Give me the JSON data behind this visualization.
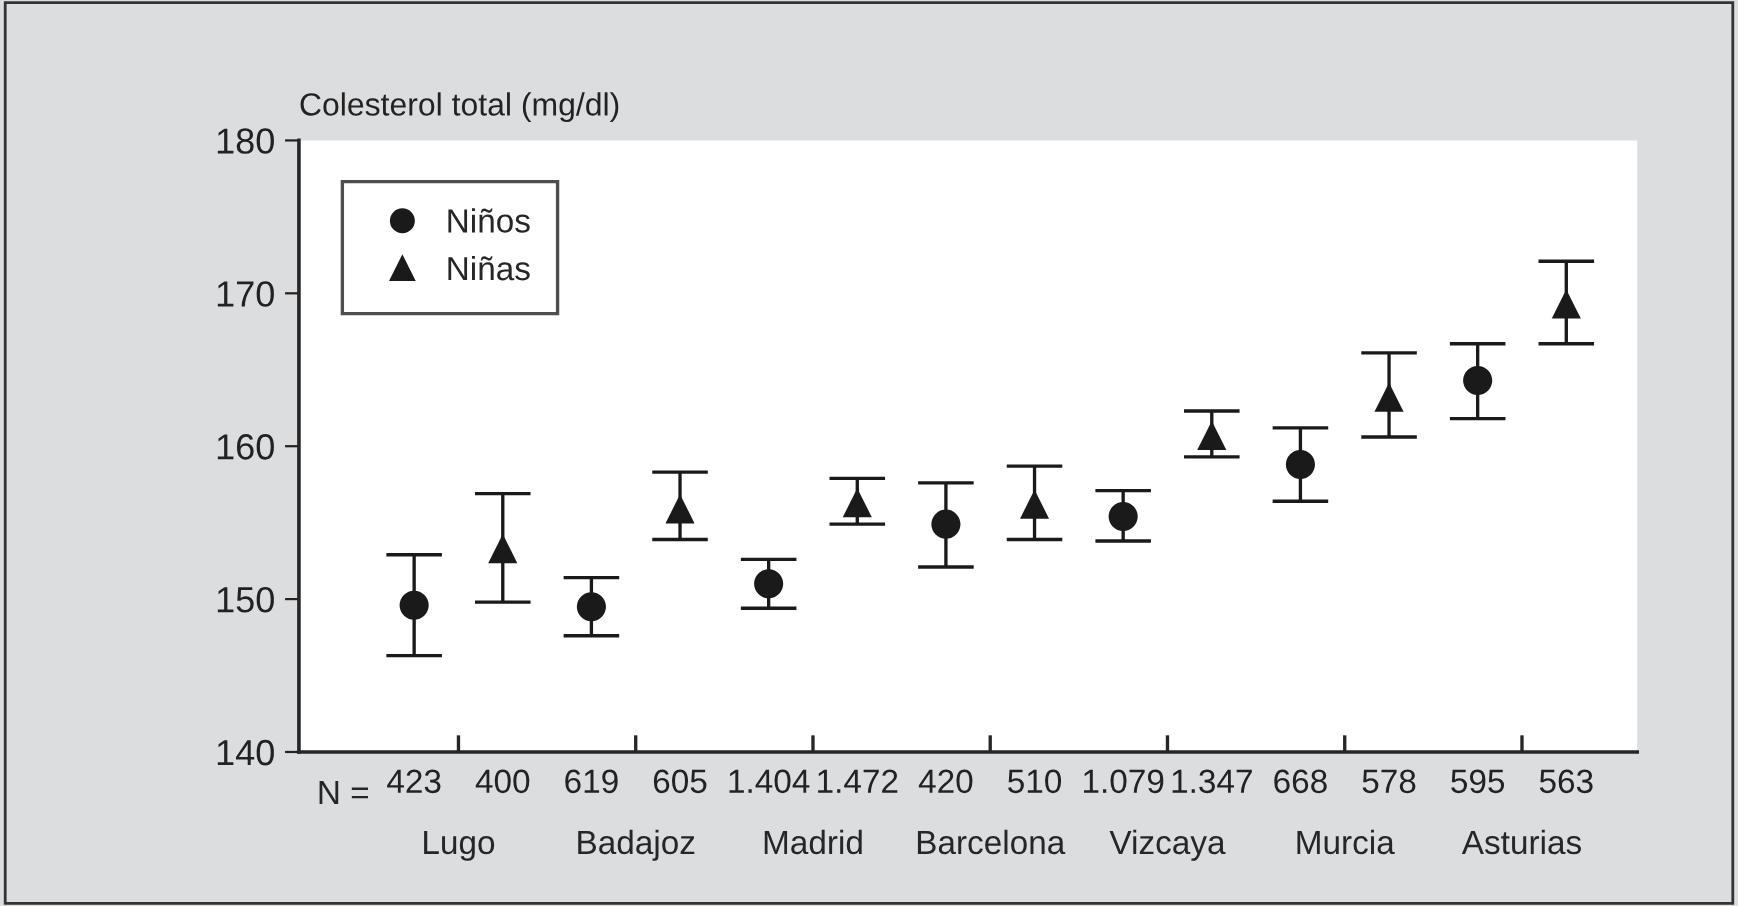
{
  "chart_data": {
    "type": "scatter",
    "ylabel": "Colesterol total (mg/dl)",
    "categories": [
      "423",
      "400",
      "619",
      "605",
      "1.404",
      "1.472",
      "420",
      "510",
      "1.079",
      "1.347",
      "668",
      "578",
      "595",
      "563"
    ],
    "series": [
      {
        "name": "Niños",
        "color": "#1a1a1a",
        "marker": "circle",
        "values": [
          149.6,
          null,
          149.5,
          null,
          151.0,
          null,
          154.9,
          null,
          155.4,
          null,
          158.8,
          null,
          164.3,
          null
        ],
        "errors": [
          [
            146.3,
            152.9
          ],
          null,
          [
            147.6,
            151.4
          ],
          null,
          [
            149.4,
            152.6
          ],
          null,
          [
            152.1,
            157.6
          ],
          null,
          [
            153.8,
            157.1
          ],
          null,
          [
            156.4,
            161.2
          ],
          null,
          [
            161.8,
            166.7
          ],
          null
        ]
      },
      {
        "name": "Niñas",
        "color": "#1a1a1a",
        "marker": "triangle",
        "values": [
          null,
          153.3,
          null,
          155.9,
          null,
          156.3,
          null,
          156.2,
          null,
          160.7,
          null,
          163.2,
          null,
          169.3
        ],
        "errors": [
          null,
          [
            149.8,
            156.9
          ],
          null,
          [
            153.9,
            158.3
          ],
          null,
          [
            154.9,
            157.9
          ],
          null,
          [
            153.9,
            158.7
          ],
          null,
          [
            159.3,
            162.3
          ],
          null,
          [
            160.6,
            166.1
          ],
          null,
          [
            166.7,
            172.1
          ]
        ]
      }
    ],
    "ylim": [
      140,
      180
    ],
    "yticks": [
      140,
      150,
      160,
      170,
      180
    ],
    "annotations": [
      "N =",
      "Lugo",
      "Badajoz",
      "Madrid",
      "Barcelona",
      "Vizcaya",
      "Murcia",
      "Asturias"
    ],
    "legend": "top left",
    "grid": false
  }
}
